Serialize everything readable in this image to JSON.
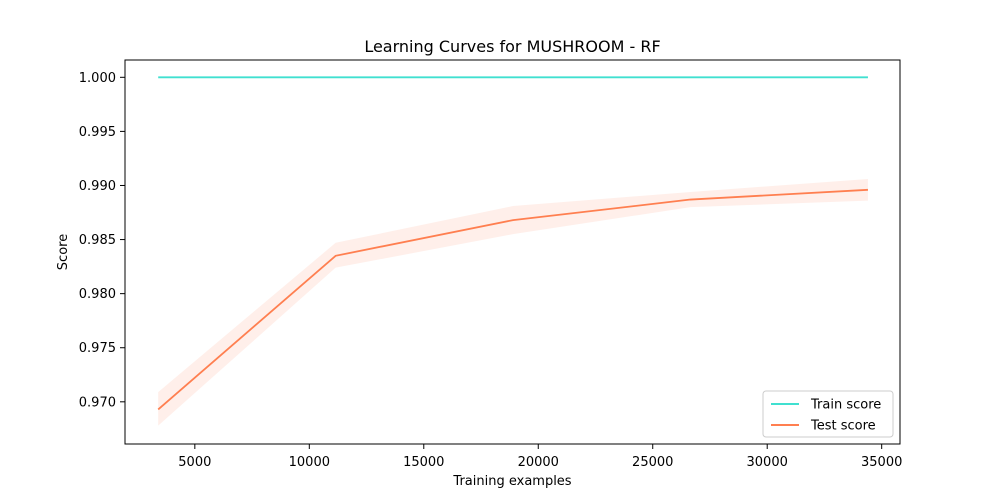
{
  "chart_data": {
    "type": "line",
    "title": "Learning Curves for MUSHROOM - RF",
    "xlabel": "Training examples",
    "ylabel": "Score",
    "xlim": [
      1950,
      35800
    ],
    "ylim": [
      0.9661,
      1.0016
    ],
    "xticks": [
      5000,
      10000,
      15000,
      20000,
      25000,
      30000,
      35000
    ],
    "xtick_labels": [
      "5000",
      "10000",
      "15000",
      "20000",
      "25000",
      "30000",
      "35000"
    ],
    "yticks": [
      0.97,
      0.975,
      0.98,
      0.985,
      0.99,
      0.995,
      1.0
    ],
    "ytick_labels": [
      "0.970",
      "0.975",
      "0.980",
      "0.985",
      "0.990",
      "0.995",
      "1.000"
    ],
    "grid": false,
    "legend_position": "lower-right",
    "x": [
      3400,
      11150,
      18900,
      26650,
      34400
    ],
    "series": [
      {
        "name": "Train score",
        "color": "#40E0D0",
        "values": [
          1.0,
          1.0,
          1.0,
          1.0,
          1.0
        ],
        "lower": [
          1.0,
          1.0,
          1.0,
          1.0,
          1.0
        ],
        "upper": [
          1.0,
          1.0,
          1.0,
          1.0,
          1.0
        ]
      },
      {
        "name": "Test score",
        "color": "#FF7F50",
        "values": [
          0.9693,
          0.9835,
          0.9868,
          0.9887,
          0.9896
        ],
        "lower": [
          0.9678,
          0.9824,
          0.9855,
          0.988,
          0.9886
        ],
        "upper": [
          0.9709,
          0.9847,
          0.9881,
          0.9894,
          0.9906
        ]
      }
    ]
  }
}
